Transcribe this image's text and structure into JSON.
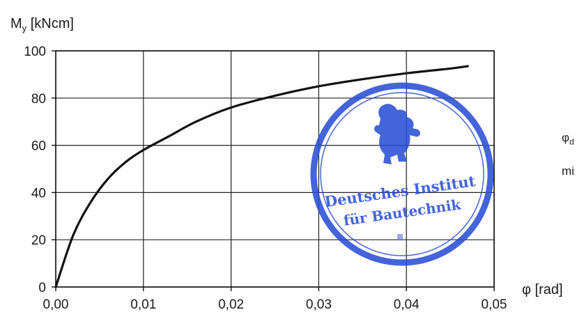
{
  "chart_data": {
    "type": "line",
    "ylabel_main": "M",
    "ylabel_sub": "y",
    "ylabel_unit": " [kNcm]",
    "xlabel": "φ [rad]",
    "xlim": [
      0,
      0.05
    ],
    "ylim": [
      0,
      100
    ],
    "grid": true,
    "x_tick_labels": [
      "0,00",
      "0,01",
      "0,02",
      "0,03",
      "0,04",
      "0,05"
    ],
    "y_tick_labels": [
      "0",
      "20",
      "40",
      "60",
      "80",
      "100"
    ],
    "series": [
      {
        "x": [
          0.0,
          0.002,
          0.004,
          0.006,
          0.008,
          0.01,
          0.013,
          0.016,
          0.02,
          0.025,
          0.03,
          0.035,
          0.04,
          0.045,
          0.047
        ],
        "y": [
          0,
          22,
          36,
          46,
          53,
          58,
          64,
          70,
          76,
          81,
          85,
          88,
          90.5,
          92.5,
          93.5
        ]
      }
    ]
  },
  "side_text": {
    "line1_main": "φ",
    "line1_sub": "d",
    "line2": "mi"
  },
  "stamp": {
    "line1": "Deutsches Institut",
    "line2": "für Bautechnik",
    "color": "#2a4fd6"
  }
}
